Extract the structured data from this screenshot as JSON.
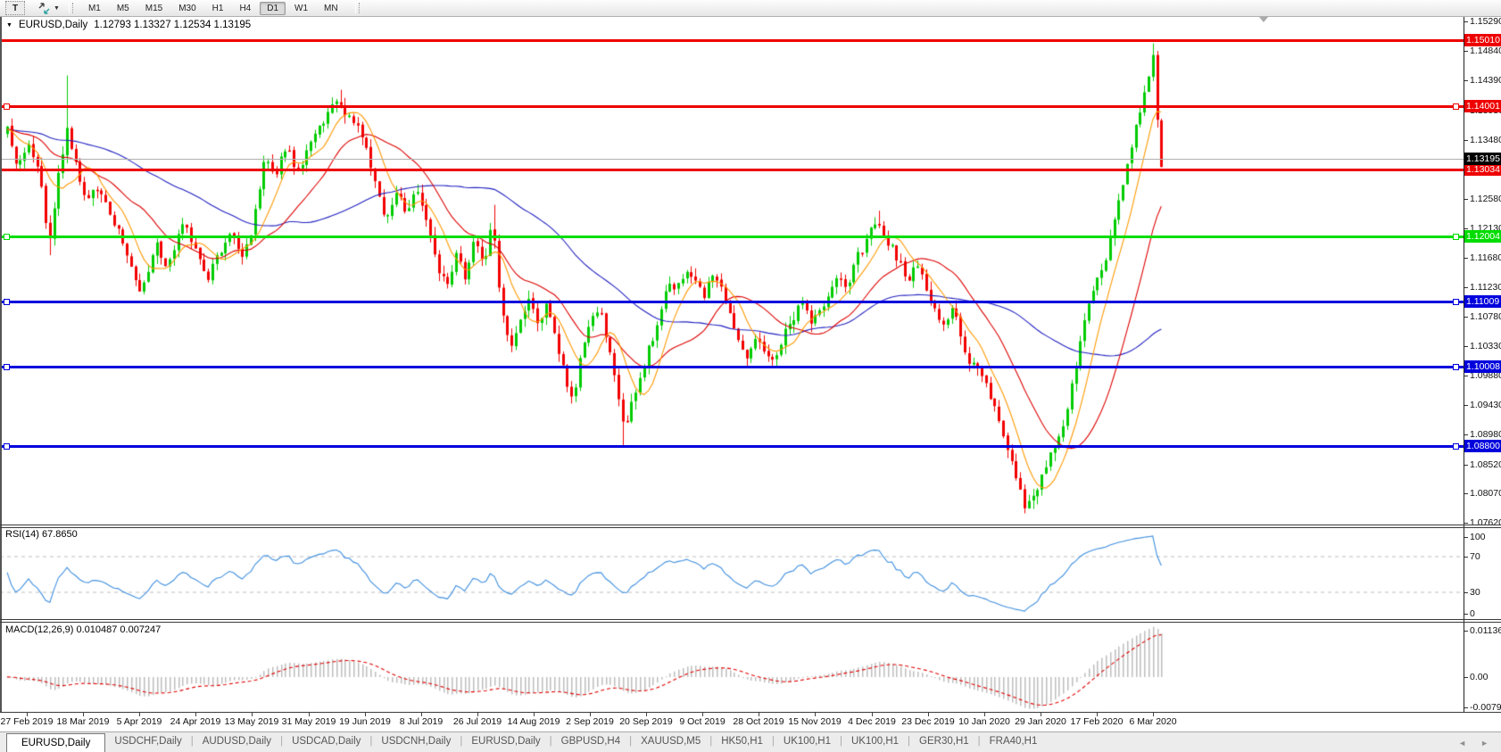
{
  "toolbar": {
    "text_tool": "T",
    "timeframes": [
      "M1",
      "M5",
      "M15",
      "M30",
      "H1",
      "H4",
      "D1",
      "W1",
      "MN"
    ],
    "active_timeframe": "D1"
  },
  "title": {
    "symbol": "EURUSD,Daily",
    "ohlc": "1.12793 1.13327 1.12534 1.13195"
  },
  "price_axis": {
    "ticks": [
      "1.15290",
      "1.14840",
      "1.14390",
      "1.13930",
      "1.13480",
      "1.12580",
      "1.12130",
      "1.11680",
      "1.11230",
      "1.10780",
      "1.10330",
      "1.09880",
      "1.09430",
      "1.08980",
      "1.08520",
      "1.08070",
      "1.07620"
    ]
  },
  "current_price": {
    "label": "1.13195",
    "value": 1.13195,
    "label_bg": "#000000",
    "line_color": "#b0b0b0"
  },
  "levels": [
    {
      "label": "1.15010",
      "value": 1.1501,
      "color": "#ee0000",
      "selected": false
    },
    {
      "label": "1.14001",
      "value": 1.14001,
      "color": "#ee0000",
      "selected": true
    },
    {
      "label": "1.13034",
      "value": 1.13034,
      "color": "#ee0000",
      "selected": false
    },
    {
      "label": "1.12004",
      "value": 1.12004,
      "color": "#00dd00",
      "selected": true
    },
    {
      "label": "1.11009",
      "value": 1.11009,
      "color": "#0000dd",
      "selected": true
    },
    {
      "label": "1.10008",
      "value": 1.10008,
      "color": "#0000dd",
      "selected": true
    },
    {
      "label": "1.08800",
      "value": 1.088,
      "color": "#0000dd",
      "selected": true
    }
  ],
  "rsi": {
    "label": "RSI(14) 67.8650",
    "value": 67.865,
    "ticks": [
      "100",
      "70",
      "30",
      "0"
    ],
    "levels": [
      70,
      30
    ],
    "line_color": "#3e8ede"
  },
  "macd": {
    "label": "MACD(12,26,9) 0.010487 0.007247",
    "value": 0.010487,
    "signal": 0.007247,
    "ticks": [
      "0.011362",
      "0.00",
      "-0.0079"
    ],
    "bar_color": "#bdbdbd",
    "signal_color": "#e00000"
  },
  "date_axis": [
    "27 Feb 2019",
    "18 Mar 2019",
    "5 Apr 2019",
    "24 Apr 2019",
    "13 May 2019",
    "31 May 2019",
    "19 Jun 2019",
    "8 Jul 2019",
    "26 Jul 2019",
    "14 Aug 2019",
    "2 Sep 2019",
    "20 Sep 2019",
    "9 Oct 2019",
    "28 Oct 2019",
    "15 Nov 2019",
    "4 Dec 2019",
    "23 Dec 2019",
    "10 Jan 2020",
    "29 Jan 2020",
    "17 Feb 2020",
    "6 Mar 2020"
  ],
  "tabs": {
    "items": [
      "EURUSD,Daily",
      "USDCHF,Daily",
      "AUDUSD,Daily",
      "USDCAD,Daily",
      "USDCNH,Daily",
      "EURUSD,Daily",
      "GBPUSD,H4",
      "XAUUSD,M5",
      "HK50,H1",
      "UK100,H1",
      "UK100,H1",
      "GER30,H1",
      "FRA40,H1"
    ],
    "active_index": 0,
    "scroll_left": "◄",
    "scroll_right": "►"
  },
  "chart_data": {
    "type": "candlestick",
    "symbol": "EURUSD",
    "timeframe": "Daily",
    "ohlc_current": {
      "open": 1.12793,
      "high": 1.13327,
      "low": 1.12534,
      "close": 1.13195
    },
    "ylim": [
      1.0757,
      1.1538
    ],
    "grid": false,
    "bull_color": "#00cc00",
    "bear_color": "#f20000",
    "ma_colors": {
      "fast": "#ff9900",
      "mid": "#dd0000",
      "slow": "#2020c0"
    },
    "levels": [
      1.1501,
      1.14001,
      1.13034,
      1.12004,
      1.11009,
      1.10008,
      1.088
    ],
    "price_path": [
      [
        8,
        1.1365
      ],
      [
        14,
        1.133
      ],
      [
        20,
        1.1308
      ],
      [
        26,
        1.133
      ],
      [
        32,
        1.1342
      ],
      [
        38,
        1.1325
      ],
      [
        45,
        1.1295
      ],
      [
        50,
        1.124
      ],
      [
        55,
        1.1185
      ],
      [
        60,
        1.124
      ],
      [
        65,
        1.129
      ],
      [
        70,
        1.132
      ],
      [
        74,
        1.1385
      ],
      [
        78,
        1.134
      ],
      [
        84,
        1.132
      ],
      [
        90,
        1.1285
      ],
      [
        96,
        1.125
      ],
      [
        103,
        1.1268
      ],
      [
        110,
        1.1278
      ],
      [
        118,
        1.1255
      ],
      [
        125,
        1.1232
      ],
      [
        133,
        1.1205
      ],
      [
        140,
        1.118
      ],
      [
        148,
        1.1148
      ],
      [
        155,
        1.1118
      ],
      [
        162,
        1.1135
      ],
      [
        168,
        1.1158
      ],
      [
        175,
        1.1188
      ],
      [
        182,
        1.117
      ],
      [
        188,
        1.115
      ],
      [
        195,
        1.1185
      ],
      [
        205,
        1.1228
      ],
      [
        212,
        1.1205
      ],
      [
        218,
        1.1182
      ],
      [
        225,
        1.1158
      ],
      [
        232,
        1.1135
      ],
      [
        239,
        1.1155
      ],
      [
        245,
        1.1175
      ],
      [
        252,
        1.1192
      ],
      [
        258,
        1.1208
      ],
      [
        265,
        1.1188
      ],
      [
        272,
        1.1165
      ],
      [
        279,
        1.1195
      ],
      [
        285,
        1.1232
      ],
      [
        291,
        1.1282
      ],
      [
        296,
        1.1322
      ],
      [
        302,
        1.1305
      ],
      [
        308,
        1.1288
      ],
      [
        314,
        1.1315
      ],
      [
        320,
        1.134
      ],
      [
        327,
        1.1318
      ],
      [
        333,
        1.1298
      ],
      [
        339,
        1.1315
      ],
      [
        345,
        1.1332
      ],
      [
        352,
        1.1352
      ],
      [
        358,
        1.1372
      ],
      [
        365,
        1.1385
      ],
      [
        372,
        1.1398
      ],
      [
        378,
        1.1402
      ],
      [
        383,
        1.1398
      ],
      [
        389,
        1.1388
      ],
      [
        395,
        1.1375
      ],
      [
        402,
        1.1362
      ],
      [
        408,
        1.1348
      ],
      [
        414,
        1.1318
      ],
      [
        420,
        1.1288
      ],
      [
        426,
        1.1255
      ],
      [
        432,
        1.1225
      ],
      [
        438,
        1.1245
      ],
      [
        444,
        1.1265
      ],
      [
        450,
        1.125
      ],
      [
        456,
        1.1235
      ],
      [
        462,
        1.1255
      ],
      [
        468,
        1.1275
      ],
      [
        473,
        1.1248
      ],
      [
        478,
        1.122
      ],
      [
        484,
        1.1188
      ],
      [
        490,
        1.1155
      ],
      [
        496,
        1.114
      ],
      [
        502,
        1.1125
      ],
      [
        507,
        1.115
      ],
      [
        512,
        1.1175
      ],
      [
        517,
        1.1155
      ],
      [
        522,
        1.1135
      ],
      [
        527,
        1.1168
      ],
      [
        532,
        1.12
      ],
      [
        537,
        1.118
      ],
      [
        542,
        1.116
      ],
      [
        547,
        1.1188
      ],
      [
        552,
        1.1235
      ],
      [
        557,
        1.115
      ],
      [
        562,
        1.109
      ],
      [
        567,
        1.1062
      ],
      [
        572,
        1.1035
      ],
      [
        577,
        1.1055
      ],
      [
        582,
        1.1075
      ],
      [
        587,
        1.109
      ],
      [
        592,
        1.1105
      ],
      [
        597,
        1.1085
      ],
      [
        602,
        1.1065
      ],
      [
        607,
        1.108
      ],
      [
        612,
        1.1095
      ],
      [
        617,
        1.107
      ],
      [
        622,
        1.1045
      ],
      [
        627,
        1.102
      ],
      [
        632,
        1.0995
      ],
      [
        637,
        1.0968
      ],
      [
        642,
        1.094
      ],
      [
        647,
        1.0988
      ],
      [
        652,
        1.1035
      ],
      [
        657,
        1.1052
      ],
      [
        662,
        1.107
      ],
      [
        667,
        1.108
      ],
      [
        672,
        1.109
      ],
      [
        677,
        1.106
      ],
      [
        682,
        1.103
      ],
      [
        687,
        1.0998
      ],
      [
        692,
        1.0965
      ],
      [
        696,
        1.0935
      ],
      [
        700,
        1.0905
      ],
      [
        704,
        1.0925
      ],
      [
        708,
        1.0945
      ],
      [
        713,
        1.0965
      ],
      [
        718,
        1.0985
      ],
      [
        723,
        1.101
      ],
      [
        728,
        1.1035
      ],
      [
        733,
        1.105
      ],
      [
        738,
        1.1065
      ],
      [
        743,
        1.1098
      ],
      [
        748,
        1.113
      ],
      [
        753,
        1.1122
      ],
      [
        758,
        1.1115
      ],
      [
        763,
        1.1135
      ],
      [
        768,
        1.1155
      ],
      [
        773,
        1.1145
      ],
      [
        778,
        1.1135
      ],
      [
        783,
        1.112
      ],
      [
        788,
        1.1105
      ],
      [
        793,
        1.1125
      ],
      [
        798,
        1.1145
      ],
      [
        803,
        1.1135
      ],
      [
        808,
        1.1125
      ],
      [
        813,
        1.11
      ],
      [
        818,
        1.1075
      ],
      [
        823,
        1.106
      ],
      [
        828,
        1.1045
      ],
      [
        833,
        1.103
      ],
      [
        838,
        1.1015
      ],
      [
        843,
        1.1035
      ],
      [
        848,
        1.1055
      ],
      [
        853,
        1.104
      ],
      [
        858,
        1.1025
      ],
      [
        863,
        1.1018
      ],
      [
        868,
        1.101
      ],
      [
        873,
        1.1032
      ],
      [
        878,
        1.1055
      ],
      [
        883,
        1.1065
      ],
      [
        888,
        1.1075
      ],
      [
        893,
        1.109
      ],
      [
        898,
        1.1105
      ],
      [
        903,
        1.1085
      ],
      [
        908,
        1.1065
      ],
      [
        913,
        1.1075
      ],
      [
        918,
        1.1085
      ],
      [
        923,
        1.1095
      ],
      [
        928,
        1.1105
      ],
      [
        933,
        1.112
      ],
      [
        938,
        1.1135
      ],
      [
        943,
        1.1128
      ],
      [
        948,
        1.112
      ],
      [
        953,
        1.1142
      ],
      [
        958,
        1.1165
      ],
      [
        963,
        1.1175
      ],
      [
        968,
        1.1185
      ],
      [
        973,
        1.1205
      ],
      [
        978,
        1.1225
      ],
      [
        983,
        1.1215
      ],
      [
        988,
        1.1205
      ],
      [
        993,
        1.1195
      ],
      [
        998,
        1.1185
      ],
      [
        1003,
        1.1172
      ],
      [
        1008,
        1.116
      ],
      [
        1013,
        1.1148
      ],
      [
        1018,
        1.1135
      ],
      [
        1023,
        1.1148
      ],
      [
        1028,
        1.116
      ],
      [
        1033,
        1.1138
      ],
      [
        1038,
        1.1115
      ],
      [
        1043,
        1.1102
      ],
      [
        1048,
        1.109
      ],
      [
        1053,
        1.1078
      ],
      [
        1058,
        1.1065
      ],
      [
        1063,
        1.1078
      ],
      [
        1068,
        1.109
      ],
      [
        1073,
        1.1062
      ],
      [
        1078,
        1.1035
      ],
      [
        1083,
        1.102
      ],
      [
        1088,
        1.1005
      ],
      [
        1093,
        1.0998
      ],
      [
        1098,
        1.099
      ],
      [
        1103,
        1.0978
      ],
      [
        1108,
        1.0965
      ],
      [
        1113,
        1.0945
      ],
      [
        1118,
        1.0925
      ],
      [
        1123,
        1.09
      ],
      [
        1128,
        1.0875
      ],
      [
        1133,
        1.0855
      ],
      [
        1138,
        1.0835
      ],
      [
        1143,
        1.0812
      ],
      [
        1148,
        1.079
      ],
      [
        1153,
        1.0795
      ],
      [
        1158,
        1.08
      ],
      [
        1163,
        1.0818
      ],
      [
        1168,
        1.0835
      ],
      [
        1173,
        1.0855
      ],
      [
        1178,
        1.0875
      ],
      [
        1183,
        1.0885
      ],
      [
        1188,
        1.0895
      ],
      [
        1193,
        1.0922
      ],
      [
        1198,
        1.095
      ],
      [
        1203,
        1.0985
      ],
      [
        1208,
        1.102
      ],
      [
        1213,
        1.1052
      ],
      [
        1218,
        1.1085
      ],
      [
        1223,
        1.111
      ],
      [
        1228,
        1.1135
      ],
      [
        1233,
        1.115
      ],
      [
        1238,
        1.1165
      ],
      [
        1243,
        1.1195
      ],
      [
        1248,
        1.1225
      ],
      [
        1253,
        1.1255
      ],
      [
        1258,
        1.1285
      ],
      [
        1263,
        1.1315
      ],
      [
        1268,
        1.1345
      ],
      [
        1273,
        1.1372
      ],
      [
        1278,
        1.14
      ],
      [
        1283,
        1.1428
      ],
      [
        1288,
        1.1455
      ],
      [
        1292,
        1.1478
      ],
      [
        1295,
        1.144
      ],
      [
        1298,
        1.133
      ],
      [
        1301,
        1.13
      ],
      [
        1303,
        1.132
      ]
    ],
    "wick_extremes": [
      [
        74,
        "high",
        1.1447
      ],
      [
        383,
        "high",
        1.1425
      ],
      [
        552,
        "high",
        1.1249
      ],
      [
        985,
        "high",
        1.124
      ],
      [
        1292,
        "high",
        1.1496
      ],
      [
        57,
        "low",
        1.1172
      ],
      [
        700,
        "low",
        1.0878
      ],
      [
        1148,
        "low",
        1.0777
      ]
    ]
  }
}
